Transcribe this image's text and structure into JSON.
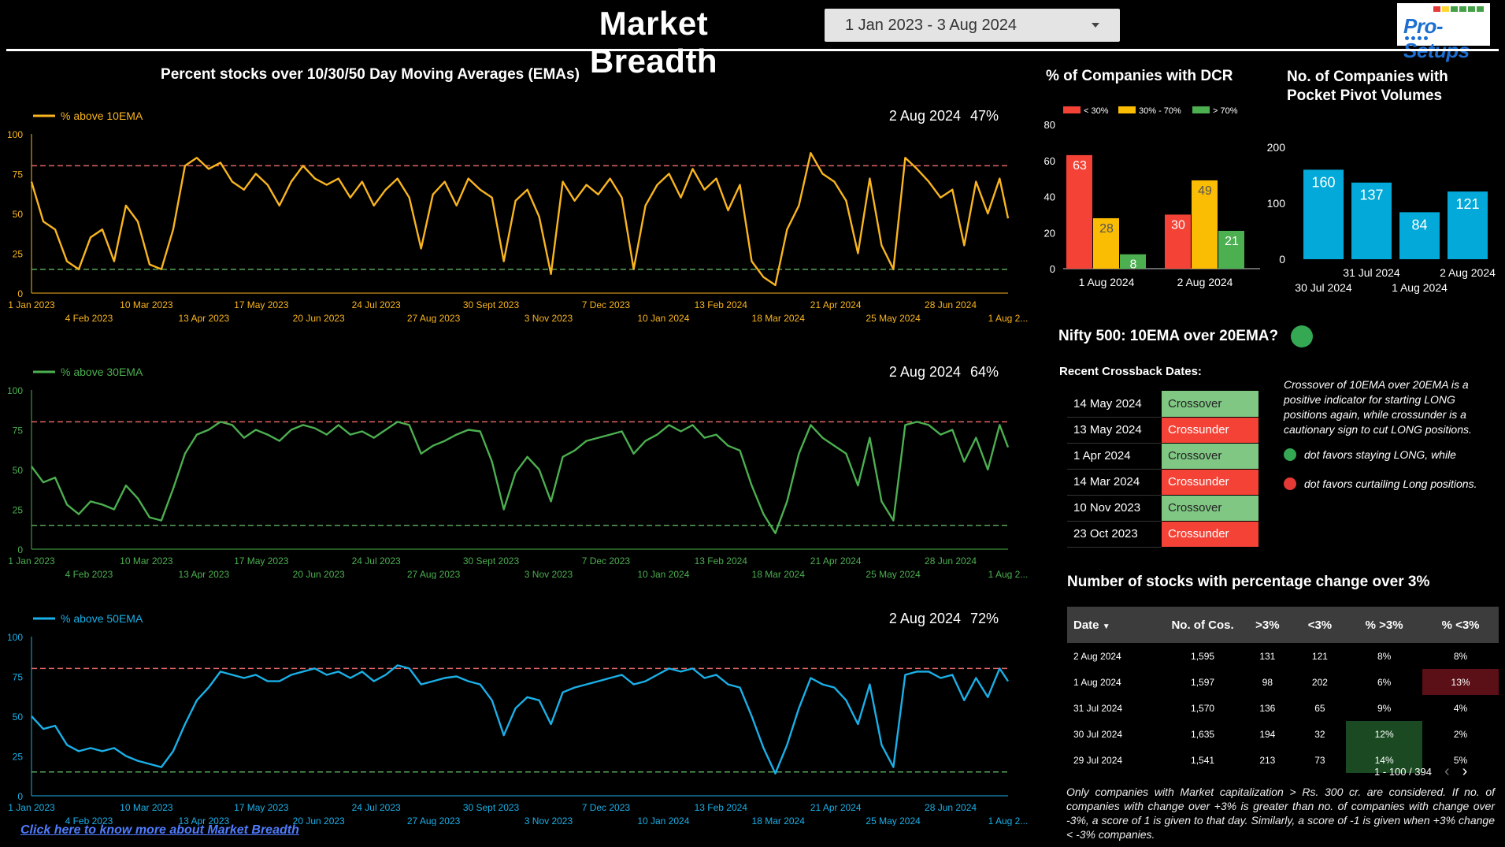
{
  "header": {
    "title": "Market Breadth",
    "date_range": "1 Jan 2023 - 3 Aug 2024",
    "logo_text": "Pro-Setups",
    "logo_colors": [
      "#e53935",
      "#fdd835",
      "#43a047",
      "#43a047",
      "#43a047",
      "#43a047"
    ]
  },
  "ema_section": {
    "title": "Percent stocks over 10/30/50 Day Moving Averages (EMAs)"
  },
  "chart_data": [
    {
      "type": "line",
      "title": "",
      "series": [
        {
          "name": "% above 10EMA",
          "color": "#f9b51f",
          "x": [
            "2023-01-01",
            "2023-01-08",
            "2023-01-15",
            "2023-01-22",
            "2023-01-29",
            "2023-02-05",
            "2023-02-12",
            "2023-02-19",
            "2023-02-26",
            "2023-03-05",
            "2023-03-12",
            "2023-03-19",
            "2023-03-26",
            "2023-04-02",
            "2023-04-09",
            "2023-04-16",
            "2023-04-23",
            "2023-04-30",
            "2023-05-07",
            "2023-05-14",
            "2023-05-21",
            "2023-05-28",
            "2023-06-04",
            "2023-06-11",
            "2023-06-18",
            "2023-06-25",
            "2023-07-02",
            "2023-07-09",
            "2023-07-16",
            "2023-07-23",
            "2023-07-30",
            "2023-08-06",
            "2023-08-13",
            "2023-08-20",
            "2023-08-27",
            "2023-09-03",
            "2023-09-10",
            "2023-09-17",
            "2023-09-24",
            "2023-10-01",
            "2023-10-08",
            "2023-10-15",
            "2023-10-22",
            "2023-10-29",
            "2023-11-05",
            "2023-11-12",
            "2023-11-19",
            "2023-11-26",
            "2023-12-03",
            "2023-12-10",
            "2023-12-17",
            "2023-12-24",
            "2023-12-31",
            "2024-01-07",
            "2024-01-14",
            "2024-01-21",
            "2024-01-28",
            "2024-02-04",
            "2024-02-11",
            "2024-02-18",
            "2024-02-25",
            "2024-03-03",
            "2024-03-10",
            "2024-03-17",
            "2024-03-24",
            "2024-03-31",
            "2024-04-07",
            "2024-04-14",
            "2024-04-21",
            "2024-04-28",
            "2024-05-05",
            "2024-05-12",
            "2024-05-19",
            "2024-05-26",
            "2024-06-02",
            "2024-06-09",
            "2024-06-16",
            "2024-06-23",
            "2024-06-30",
            "2024-07-07",
            "2024-07-14",
            "2024-07-21",
            "2024-07-28",
            "2024-08-02"
          ],
          "values": [
            70,
            45,
            40,
            20,
            15,
            35,
            40,
            20,
            55,
            45,
            18,
            15,
            40,
            80,
            85,
            78,
            82,
            70,
            65,
            75,
            68,
            55,
            70,
            80,
            72,
            68,
            72,
            60,
            70,
            55,
            65,
            72,
            60,
            28,
            62,
            70,
            55,
            72,
            65,
            60,
            20,
            58,
            65,
            48,
            12,
            70,
            58,
            68,
            62,
            72,
            60,
            15,
            55,
            68,
            75,
            60,
            78,
            65,
            72,
            52,
            68,
            20,
            10,
            5,
            40,
            55,
            88,
            75,
            70,
            58,
            25,
            72,
            30,
            15,
            85,
            78,
            70,
            60,
            65,
            30,
            70,
            50,
            72,
            47
          ]
        }
      ],
      "yticks": [
        0,
        25,
        50,
        75,
        100
      ],
      "ylim": [
        0,
        100
      ],
      "reference_lines": [
        {
          "value": 80,
          "color": "#e06666"
        },
        {
          "value": 15,
          "color": "#57a55a"
        }
      ],
      "xticks_top": [
        "1 Jan 2023",
        "10 Mar 2023",
        "17 May 2023",
        "24 Jul 2023",
        "30 Sept 2023",
        "7 Dec 2023",
        "13 Feb 2024",
        "21 Apr 2024",
        "28 Jun 2024"
      ],
      "xticks_bottom": [
        "4 Feb 2023",
        "13 Apr 2023",
        "20 Jun 2023",
        "27 Aug 2023",
        "3 Nov 2023",
        "10 Jan 2024",
        "18 Mar 2024",
        "25 May 2024",
        "1 Aug 2..."
      ],
      "latest_date": "2 Aug 2024",
      "latest_value": "47%"
    },
    {
      "type": "line",
      "title": "",
      "series": [
        {
          "name": "% above 30EMA",
          "color": "#4caf50",
          "x": [
            "2023-01-01",
            "2023-01-08",
            "2023-01-15",
            "2023-01-22",
            "2023-01-29",
            "2023-02-05",
            "2023-02-12",
            "2023-02-19",
            "2023-02-26",
            "2023-03-05",
            "2023-03-12",
            "2023-03-19",
            "2023-03-26",
            "2023-04-02",
            "2023-04-09",
            "2023-04-16",
            "2023-04-23",
            "2023-04-30",
            "2023-05-07",
            "2023-05-14",
            "2023-05-21",
            "2023-05-28",
            "2023-06-04",
            "2023-06-11",
            "2023-06-18",
            "2023-06-25",
            "2023-07-02",
            "2023-07-09",
            "2023-07-16",
            "2023-07-23",
            "2023-07-30",
            "2023-08-06",
            "2023-08-13",
            "2023-08-20",
            "2023-08-27",
            "2023-09-03",
            "2023-09-10",
            "2023-09-17",
            "2023-09-24",
            "2023-10-01",
            "2023-10-08",
            "2023-10-15",
            "2023-10-22",
            "2023-10-29",
            "2023-11-05",
            "2023-11-12",
            "2023-11-19",
            "2023-11-26",
            "2023-12-03",
            "2023-12-10",
            "2023-12-17",
            "2023-12-24",
            "2023-12-31",
            "2024-01-07",
            "2024-01-14",
            "2024-01-21",
            "2024-01-28",
            "2024-02-04",
            "2024-02-11",
            "2024-02-18",
            "2024-02-25",
            "2024-03-03",
            "2024-03-10",
            "2024-03-17",
            "2024-03-24",
            "2024-03-31",
            "2024-04-07",
            "2024-04-14",
            "2024-04-21",
            "2024-04-28",
            "2024-05-05",
            "2024-05-12",
            "2024-05-19",
            "2024-05-26",
            "2024-06-02",
            "2024-06-09",
            "2024-06-16",
            "2024-06-23",
            "2024-06-30",
            "2024-07-07",
            "2024-07-14",
            "2024-07-21",
            "2024-07-28",
            "2024-08-02"
          ],
          "values": [
            52,
            42,
            45,
            28,
            22,
            30,
            28,
            25,
            40,
            32,
            20,
            18,
            38,
            60,
            72,
            75,
            80,
            78,
            70,
            75,
            72,
            68,
            75,
            78,
            76,
            72,
            78,
            72,
            74,
            70,
            75,
            80,
            78,
            60,
            65,
            68,
            72,
            75,
            74,
            55,
            25,
            48,
            58,
            50,
            30,
            58,
            62,
            68,
            70,
            72,
            74,
            60,
            68,
            72,
            78,
            74,
            78,
            70,
            72,
            65,
            62,
            40,
            22,
            10,
            30,
            60,
            78,
            70,
            65,
            60,
            40,
            70,
            30,
            18,
            78,
            80,
            78,
            72,
            75,
            55,
            70,
            50,
            78,
            64
          ]
        }
      ],
      "yticks": [
        0,
        25,
        50,
        75,
        100
      ],
      "ylim": [
        0,
        100
      ],
      "reference_lines": [
        {
          "value": 80,
          "color": "#e06666"
        },
        {
          "value": 15,
          "color": "#57a55a"
        }
      ],
      "xticks_top": [
        "1 Jan 2023",
        "10 Mar 2023",
        "17 May 2023",
        "24 Jul 2023",
        "30 Sept 2023",
        "7 Dec 2023",
        "13 Feb 2024",
        "21 Apr 2024",
        "28 Jun 2024"
      ],
      "xticks_bottom": [
        "4 Feb 2023",
        "13 Apr 2023",
        "20 Jun 2023",
        "27 Aug 2023",
        "3 Nov 2023",
        "10 Jan 2024",
        "18 Mar 2024",
        "25 May 2024",
        "1 Aug 2..."
      ],
      "latest_date": "2 Aug 2024",
      "latest_value": "64%"
    },
    {
      "type": "line",
      "title": "",
      "series": [
        {
          "name": "% above 50EMA",
          "color": "#1ab0e8",
          "x": [
            "2023-01-01",
            "2023-01-08",
            "2023-01-15",
            "2023-01-22",
            "2023-01-29",
            "2023-02-05",
            "2023-02-12",
            "2023-02-19",
            "2023-02-26",
            "2023-03-05",
            "2023-03-12",
            "2023-03-19",
            "2023-03-26",
            "2023-04-02",
            "2023-04-09",
            "2023-04-16",
            "2023-04-23",
            "2023-04-30",
            "2023-05-07",
            "2023-05-14",
            "2023-05-21",
            "2023-05-28",
            "2023-06-04",
            "2023-06-11",
            "2023-06-18",
            "2023-06-25",
            "2023-07-02",
            "2023-07-09",
            "2023-07-16",
            "2023-07-23",
            "2023-07-30",
            "2023-08-06",
            "2023-08-13",
            "2023-08-20",
            "2023-08-27",
            "2023-09-03",
            "2023-09-10",
            "2023-09-17",
            "2023-09-24",
            "2023-10-01",
            "2023-10-08",
            "2023-10-15",
            "2023-10-22",
            "2023-10-29",
            "2023-11-05",
            "2023-11-12",
            "2023-11-19",
            "2023-11-26",
            "2023-12-03",
            "2023-12-10",
            "2023-12-17",
            "2023-12-24",
            "2023-12-31",
            "2024-01-07",
            "2024-01-14",
            "2024-01-21",
            "2024-01-28",
            "2024-02-04",
            "2024-02-11",
            "2024-02-18",
            "2024-02-25",
            "2024-03-03",
            "2024-03-10",
            "2024-03-17",
            "2024-03-24",
            "2024-03-31",
            "2024-04-07",
            "2024-04-14",
            "2024-04-21",
            "2024-04-28",
            "2024-05-05",
            "2024-05-12",
            "2024-05-19",
            "2024-05-26",
            "2024-06-02",
            "2024-06-09",
            "2024-06-16",
            "2024-06-23",
            "2024-06-30",
            "2024-07-07",
            "2024-07-14",
            "2024-07-21",
            "2024-07-28",
            "2024-08-02"
          ],
          "values": [
            50,
            42,
            44,
            32,
            28,
            30,
            28,
            30,
            25,
            22,
            20,
            18,
            28,
            45,
            60,
            68,
            78,
            76,
            74,
            76,
            72,
            72,
            76,
            78,
            80,
            76,
            78,
            74,
            78,
            72,
            76,
            82,
            80,
            70,
            72,
            74,
            75,
            72,
            70,
            60,
            38,
            55,
            62,
            60,
            45,
            65,
            68,
            70,
            72,
            74,
            76,
            70,
            72,
            76,
            80,
            78,
            80,
            74,
            76,
            70,
            68,
            50,
            30,
            14,
            32,
            55,
            74,
            70,
            68,
            60,
            45,
            70,
            32,
            18,
            76,
            78,
            78,
            74,
            76,
            60,
            74,
            62,
            80,
            72
          ]
        }
      ],
      "yticks": [
        0,
        25,
        50,
        75,
        100
      ],
      "ylim": [
        0,
        100
      ],
      "reference_lines": [
        {
          "value": 80,
          "color": "#e06666"
        },
        {
          "value": 15,
          "color": "#57a55a"
        }
      ],
      "xticks_top": [
        "1 Jan 2023",
        "10 Mar 2023",
        "17 May 2023",
        "24 Jul 2023",
        "30 Sept 2023",
        "7 Dec 2023",
        "13 Feb 2024",
        "21 Apr 2024",
        "28 Jun 2024"
      ],
      "xticks_bottom": [
        "4 Feb 2023",
        "13 Apr 2023",
        "20 Jun 2023",
        "27 Aug 2023",
        "3 Nov 2023",
        "10 Jan 2024",
        "18 Mar 2024",
        "25 May 2024",
        "1 Aug 2..."
      ],
      "latest_date": "2 Aug 2024",
      "latest_value": "72%"
    },
    {
      "type": "bar",
      "title": "% of Companies with DCR",
      "categories": [
        "1 Aug 2024",
        "2 Aug 2024"
      ],
      "series": [
        {
          "name": "< 30%",
          "color": "#f44336",
          "values": [
            63,
            30
          ]
        },
        {
          "name": "30% - 70%",
          "color": "#fbbc04",
          "values": [
            28,
            49
          ]
        },
        {
          "name": "> 70%",
          "color": "#4caf50",
          "values": [
            8,
            21
          ]
        }
      ],
      "yticks": [
        0,
        20,
        40,
        60,
        80
      ],
      "ylim": [
        0,
        80
      ]
    },
    {
      "type": "bar",
      "title": "No. of Companies with Pocket Pivot Volumes",
      "categories": [
        "30 Jul 2024",
        "31 Jul 2024",
        "1 Aug 2024",
        "2 Aug 2024"
      ],
      "values": [
        160,
        137,
        84,
        121
      ],
      "color": "#03a9d8",
      "yticks": [
        0,
        100,
        200
      ],
      "ylim": [
        0,
        200
      ]
    }
  ],
  "nifty": {
    "question": "Nifty 500: 10EMA over 20EMA?",
    "dot_color": "#34a853",
    "recent_title": "Recent Crossback Dates:",
    "crossbacks": [
      {
        "date": "14 May 2024",
        "type": "Crossover"
      },
      {
        "date": "13 May 2024",
        "type": "Crossunder"
      },
      {
        "date": "1 Apr 2024",
        "type": "Crossover"
      },
      {
        "date": "14 Mar 2024",
        "type": "Crossunder"
      },
      {
        "date": "10 Nov 2023",
        "type": "Crossover"
      },
      {
        "date": "23 Oct 2023",
        "type": "Crossunder"
      }
    ],
    "note": "Crossover of 10EMA over 20EMA is a positive indicator for starting LONG positions again, while crossunder is a cautionary sign to cut LONG positions.",
    "legend_long": "dot favors staying LONG, while",
    "legend_short": "dot favors curtailing Long positions."
  },
  "stocks": {
    "title": "Number of stocks with percentage change over 3%",
    "headers": {
      "date": "Date",
      "cos": "No. of Cos.",
      "up": ">3%",
      "down": "<3%",
      "pct_up": "% >3%",
      "pct_down": "% <3%"
    },
    "rows": [
      {
        "date": "2 Aug 2024",
        "cos": "1,595",
        "up": "131",
        "down": "121",
        "pct_up": "8%",
        "pct_down": "8%"
      },
      {
        "date": "1 Aug 2024",
        "cos": "1,597",
        "up": "98",
        "down": "202",
        "pct_up": "6%",
        "pct_down": "13%"
      },
      {
        "date": "31 Jul 2024",
        "cos": "1,570",
        "up": "136",
        "down": "65",
        "pct_up": "9%",
        "pct_down": "4%"
      },
      {
        "date": "30 Jul 2024",
        "cos": "1,635",
        "up": "194",
        "down": "32",
        "pct_up": "12%",
        "pct_down": "2%"
      },
      {
        "date": "29 Jul 2024",
        "cos": "1,541",
        "up": "213",
        "down": "73",
        "pct_up": "14%",
        "pct_down": "5%"
      }
    ],
    "pager": "1 - 100 / 394",
    "footnote": "Only companies with Market capitalization > Rs. 300 cr. are considered. If no. of companies with change over +3% is greater than no. of companies with change over -3%, a score of 1 is given to that day. Similarly, a score of -1 is given when +3% change < -3% companies."
  },
  "footer": {
    "link": "Click here to know more about Market Breadth"
  }
}
